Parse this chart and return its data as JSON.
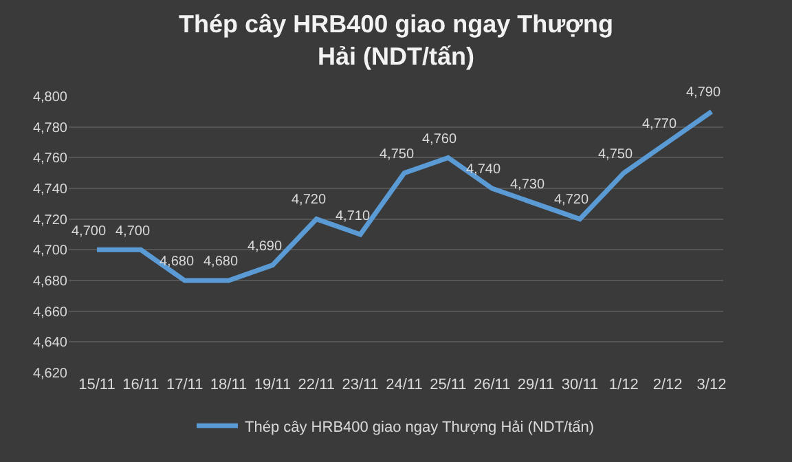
{
  "chart_data": {
    "type": "line",
    "title": "Thép cây HRB400 giao ngay Thượng Hải (NDT/tấn)",
    "categories": [
      "15/11",
      "16/11",
      "17/11",
      "18/11",
      "19/11",
      "22/11",
      "23/11",
      "24/11",
      "25/11",
      "26/11",
      "29/11",
      "30/11",
      "1/12",
      "2/12",
      "3/12"
    ],
    "series": [
      {
        "name": "Thép cây HRB400 giao ngay Thượng Hải (NDT/tấn)",
        "color": "#5b9bd5",
        "values": [
          4700,
          4700,
          4680,
          4680,
          4690,
          4720,
          4710,
          4750,
          4760,
          4740,
          4730,
          4720,
          4750,
          4770,
          4790
        ],
        "value_labels": [
          "4,700",
          "4,700",
          "4,680",
          "4,680",
          "4,690",
          "4,720",
          "4,710",
          "4,750",
          "4,760",
          "4,740",
          "4,730",
          "4,720",
          "4,750",
          "4,770",
          "4,790"
        ]
      }
    ],
    "ylim": [
      4620,
      4800
    ],
    "yticks": [
      {
        "value": 4620,
        "label": "4,620"
      },
      {
        "value": 4640,
        "label": "4,640"
      },
      {
        "value": 4660,
        "label": "4,660"
      },
      {
        "value": 4680,
        "label": "4,680"
      },
      {
        "value": 4700,
        "label": "4,700"
      },
      {
        "value": 4720,
        "label": "4,720"
      },
      {
        "value": 4740,
        "label": "4,740"
      },
      {
        "value": 4760,
        "label": "4,760"
      },
      {
        "value": 4780,
        "label": "4,780"
      },
      {
        "value": 4800,
        "label": "4,800"
      }
    ],
    "grid": "y",
    "legend": "bottom",
    "marker": "none",
    "line_style": "solid"
  }
}
